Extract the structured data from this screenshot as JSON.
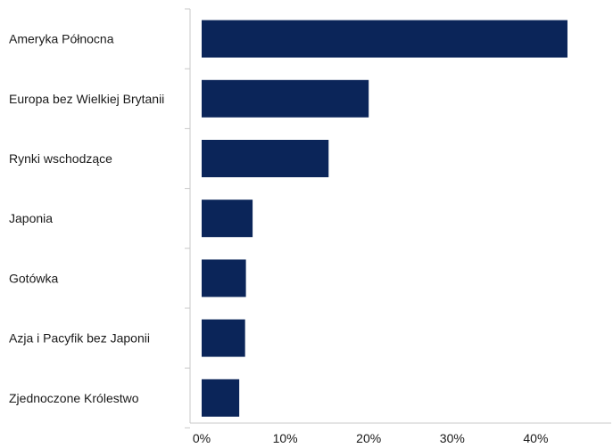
{
  "chart_data": {
    "type": "bar",
    "orientation": "horizontal",
    "categories": [
      "Ameryka Północna",
      "Europa bez Wielkiej Brytanii",
      "Rynki wschodzące",
      "Japonia",
      "Gotówka",
      "Azja i Pacyfik bez Japonii",
      "Zjednoczone Królestwo"
    ],
    "values": [
      43.8,
      20.0,
      15.2,
      6.1,
      5.3,
      5.2,
      4.5
    ],
    "xlim": [
      0,
      48
    ],
    "xticks": [
      0,
      10,
      20,
      30,
      40
    ],
    "xtick_labels": [
      "0%",
      "10%",
      "20%",
      "30%",
      "40%"
    ],
    "grid": false,
    "legend": "none",
    "bar_color": "#0b2559"
  }
}
